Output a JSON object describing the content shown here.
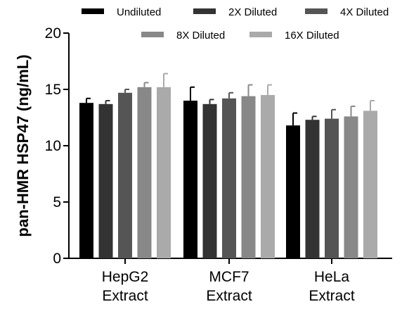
{
  "chart_data": {
    "type": "bar",
    "ylabel": "pan-HMR HSP47 (ng/mL)",
    "xlabel": "",
    "ylim": [
      0,
      20
    ],
    "yticks": [
      0,
      5,
      10,
      15,
      20
    ],
    "legend_position": "top",
    "categories": [
      [
        "HepG2",
        "Extract"
      ],
      [
        "MCF7",
        "Extract"
      ],
      [
        "HeLa",
        "Extract"
      ]
    ],
    "series": [
      {
        "name": "Undiluted",
        "color": "#000000",
        "values": [
          13.8,
          14.0,
          11.8
        ],
        "errors": [
          0.4,
          1.2,
          1.1
        ]
      },
      {
        "name": "2X Diluted",
        "color": "#333333",
        "values": [
          13.7,
          13.7,
          12.3
        ],
        "errors": [
          0.3,
          0.4,
          0.3
        ]
      },
      {
        "name": "4X Diluted",
        "color": "#555555",
        "values": [
          14.7,
          14.2,
          12.4
        ],
        "errors": [
          0.3,
          0.5,
          0.8
        ]
      },
      {
        "name": "8X Diluted",
        "color": "#888888",
        "values": [
          15.2,
          14.4,
          12.6
        ],
        "errors": [
          0.4,
          1.0,
          0.9
        ]
      },
      {
        "name": "16X Diluted",
        "color": "#aaaaaa",
        "values": [
          15.2,
          14.5,
          13.1
        ],
        "errors": [
          1.2,
          0.9,
          0.9
        ]
      }
    ]
  }
}
